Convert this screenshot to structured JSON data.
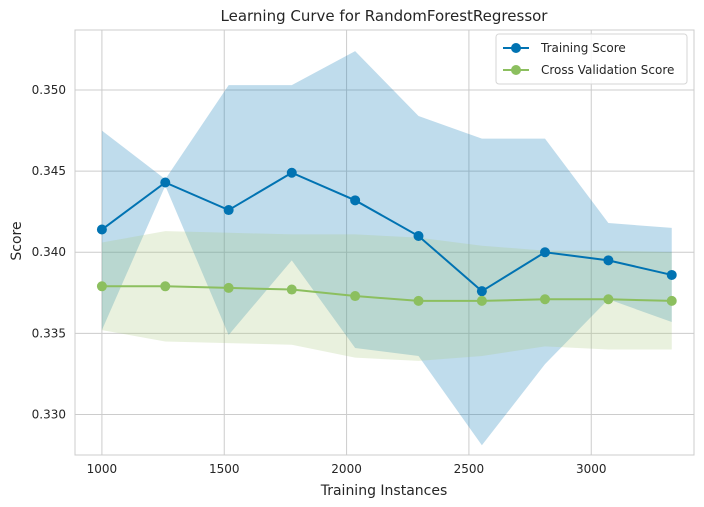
{
  "chart_data": {
    "type": "line",
    "title": "Learning Curve for RandomForestRegressor",
    "xlabel": "Training Instances",
    "ylabel": "Score",
    "xlim": [
      890,
      3420
    ],
    "ylim": [
      0.3275,
      0.3537
    ],
    "xticks": [
      1000,
      1500,
      2000,
      2500,
      3000
    ],
    "yticks": [
      0.33,
      0.335,
      0.34,
      0.345,
      0.35
    ],
    "ytick_labels": [
      "0.330",
      "0.335",
      "0.340",
      "0.345",
      "0.350"
    ],
    "grid": true,
    "legend_position": "top-right",
    "x": [
      1000,
      1259,
      1518,
      1776,
      2035,
      2294,
      2553,
      2811,
      3070,
      3329
    ],
    "series": [
      {
        "name": "Training Score",
        "color": "#0173b2",
        "band_color": "#0173b2",
        "values": [
          0.3414,
          0.3443,
          0.3426,
          0.3449,
          0.3432,
          0.341,
          0.3376,
          0.34,
          0.3395,
          0.3386
        ],
        "upper": [
          0.3475,
          0.3445,
          0.3503,
          0.3503,
          0.3524,
          0.3484,
          0.347,
          0.347,
          0.3418,
          0.3415
        ],
        "lower": [
          0.3352,
          0.3441,
          0.3349,
          0.3395,
          0.3341,
          0.3336,
          0.3281,
          0.3331,
          0.3371,
          0.3357
        ]
      },
      {
        "name": "Cross Validation Score",
        "color": "#8cbf5f",
        "band_color": "#a8c97a",
        "values": [
          0.3379,
          0.3379,
          0.3378,
          0.3377,
          0.3373,
          0.337,
          0.337,
          0.3371,
          0.3371,
          0.337
        ],
        "upper": [
          0.3406,
          0.3413,
          0.3412,
          0.3411,
          0.3411,
          0.3409,
          0.3404,
          0.3401,
          0.3401,
          0.34
        ],
        "lower": [
          0.3352,
          0.3345,
          0.3344,
          0.3343,
          0.3335,
          0.3333,
          0.3336,
          0.3342,
          0.334,
          0.334
        ]
      }
    ]
  }
}
